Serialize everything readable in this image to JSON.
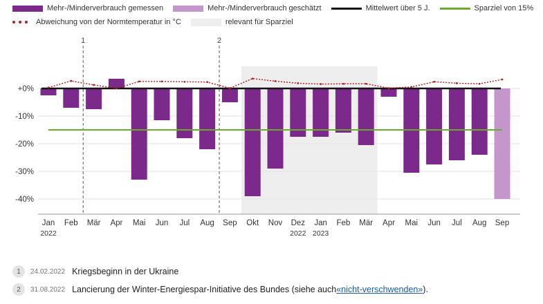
{
  "legend": {
    "measured": "Mehr-/Minderverbrauch gemessen",
    "estimated": "Mehr-/Minderverbrauch geschätzt",
    "mean": "Mittelwert über 5 J.",
    "target": "Sparziel von 15%",
    "temperature": "Abweichung von der Normtemperatur in °C",
    "relevant": "relevant für Sparziel"
  },
  "colors": {
    "measured": "#7b2a8c",
    "estimated": "#c596cc",
    "mean": "#111111",
    "target": "#6aab2e",
    "temperature": "#b22222",
    "relevant": "#eeeeee",
    "grid": "#e2e2e2"
  },
  "chart_data": {
    "type": "bar",
    "title": "",
    "xlabel": "",
    "ylabel": "",
    "ylim": [
      -45,
      4
    ],
    "yticks": [
      0,
      -10,
      -20,
      -30,
      -40
    ],
    "ytick_labels": [
      "+0%",
      "-10%",
      "-20%",
      "-30%",
      "-40%"
    ],
    "categories": [
      "Jan",
      "Feb",
      "Mär",
      "Apr",
      "Mai",
      "Jun",
      "Jul",
      "Aug",
      "Sep",
      "Okt",
      "Nov",
      "Dez",
      "Jan",
      "Feb",
      "Mär",
      "Apr",
      "Mai",
      "Jun",
      "Jul",
      "Aug",
      "Sep"
    ],
    "year_labels": [
      "2022",
      "",
      "",
      "",
      "",
      "",
      "",
      "",
      "",
      "",
      "",
      "2022",
      "2023",
      "",
      "",
      "",
      "",
      "",
      "",
      "",
      ""
    ],
    "series": [
      {
        "name": "Mehr-/Minderverbrauch gemessen",
        "values": [
          -2.5,
          -7,
          -7.5,
          3.5,
          -33,
          -11.5,
          -18,
          -22,
          -5,
          -39,
          -29,
          -17.5,
          -17.5,
          -16,
          -20.5,
          -3,
          -30.5,
          -27.5,
          -26,
          -24,
          null
        ]
      },
      {
        "name": "Mehr-/Minderverbrauch geschätzt",
        "values": [
          null,
          null,
          null,
          null,
          null,
          null,
          null,
          null,
          null,
          null,
          null,
          null,
          null,
          null,
          null,
          null,
          null,
          null,
          null,
          null,
          -40
        ]
      },
      {
        "name": "Abweichung von der Normtemperatur in °C",
        "values": [
          0.3,
          2.6,
          1.2,
          0.0,
          2.4,
          2.4,
          2.3,
          2.2,
          0.1,
          3.4,
          2.5,
          1.8,
          1.5,
          1.6,
          1.6,
          0.1,
          0.5,
          2.3,
          1.8,
          1.6,
          3.1
        ]
      }
    ],
    "mean_value": 0,
    "target_value": -15,
    "relevant_range": [
      "Okt",
      "Mär"
    ],
    "markers": [
      {
        "label": "1",
        "position": "Mär"
      },
      {
        "label": "2",
        "position": "Sep"
      }
    ]
  },
  "notes": [
    {
      "number": "1",
      "date": "24.02.2022",
      "text": "Kriegsbeginn in der Ukraine",
      "link": ""
    },
    {
      "number": "2",
      "date": "31.08.2022",
      "text": "Lancierung der Winter-Energiespar-Initiative des Bundes (siehe auch ",
      "link": "«nicht-verschwenden»",
      "suffix": ")."
    }
  ]
}
